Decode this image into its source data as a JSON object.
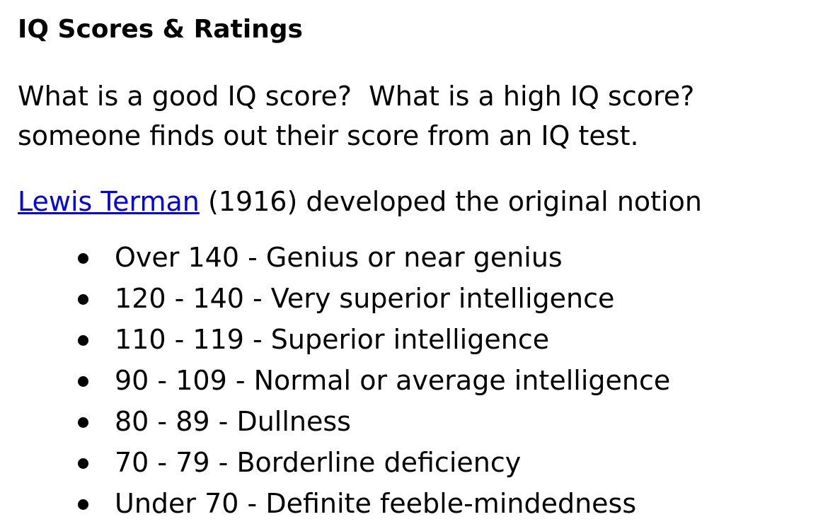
{
  "title": "IQ Scores & Ratings",
  "intro": {
    "line1": "What is a good IQ score?  What is a high IQ score?",
    "line2": "someone finds out their score from an IQ test."
  },
  "terman": {
    "link": "Lewis Terman",
    "text": " (1916) developed the original notion"
  },
  "ratings": [
    "Over 140 - Genius or near genius",
    "120 - 140 - Very superior intelligence",
    "110 - 119 - Superior intelligence",
    "90 - 109 - Normal or average intelligence",
    "80 - 89 - Dullness",
    "70 - 79 - Borderline deficiency",
    "Under 70 - Definite feeble-mindedness"
  ],
  "colors": {
    "link": "#0000ee",
    "text": "#000000"
  }
}
